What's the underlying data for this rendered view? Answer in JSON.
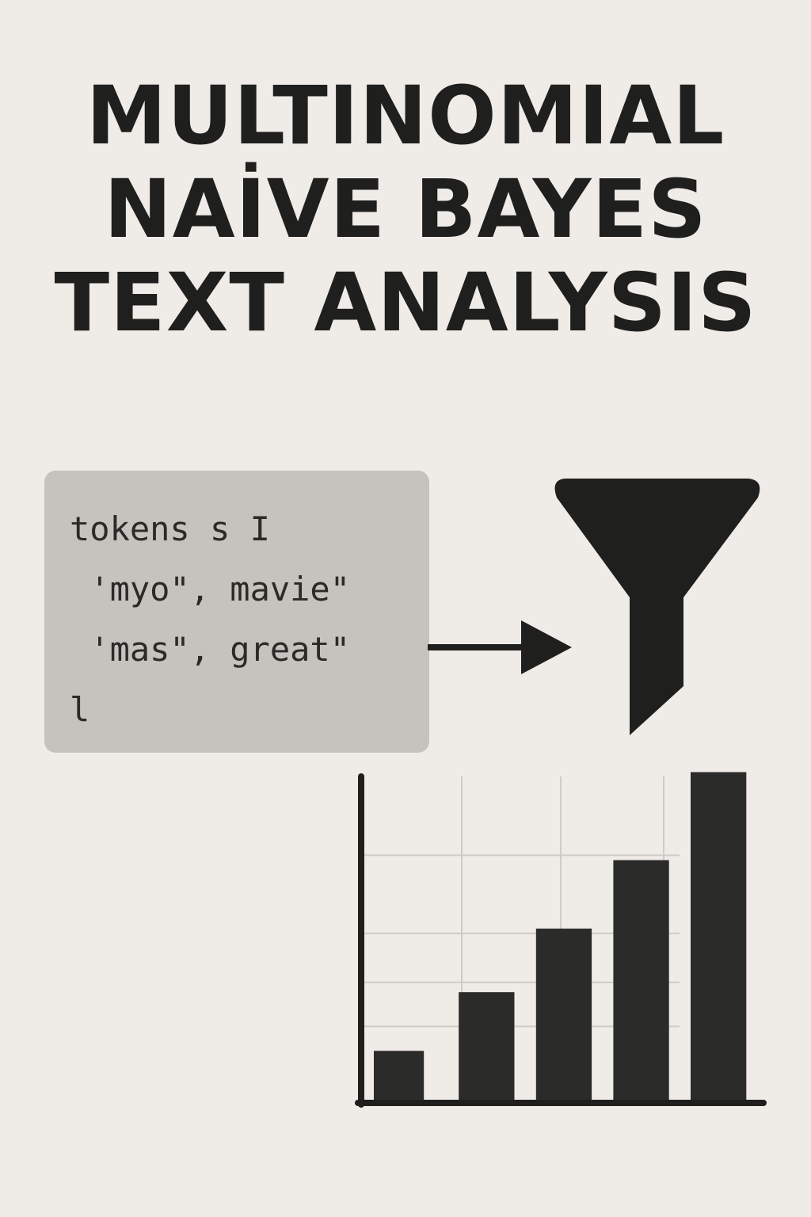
{
  "title": {
    "lines": [
      "MULTINOMIAL",
      "NAİVE BAYES",
      "TEXT ANALYSIS"
    ]
  },
  "token_box": {
    "lines": [
      "tokens s I",
      " 'myo\", mavie\"",
      " 'mas\", great\"",
      "l"
    ]
  },
  "icons": {
    "arrow": "right-arrow-icon",
    "funnel": "funnel-icon"
  },
  "colors": {
    "background": "#efece8",
    "ink": "#1f1f1d",
    "box": "#c6c3be",
    "bar": "#2b2b29",
    "grid": "#cfccc7"
  },
  "chart_data": {
    "type": "bar",
    "categories": [
      "",
      "",
      "",
      "",
      ""
    ],
    "values": [
      1.0,
      2.2,
      3.5,
      4.9,
      6.7
    ],
    "title": "",
    "xlabel": "",
    "ylabel": "",
    "ylim": [
      0,
      7
    ],
    "grid": true,
    "legend": "none"
  }
}
